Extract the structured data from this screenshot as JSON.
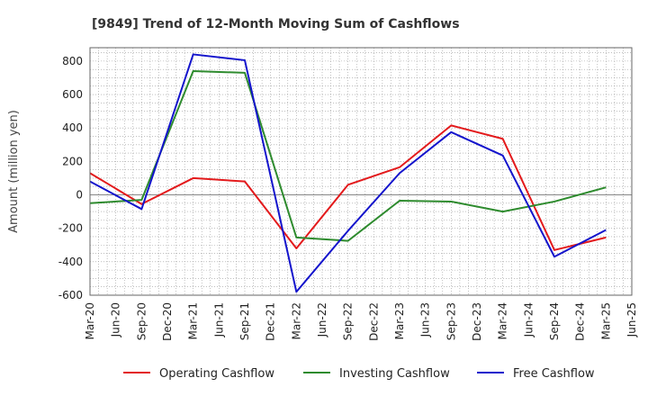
{
  "chart_data": {
    "type": "line",
    "title": "[9849]  Trend of 12-Month Moving Sum of Cashflows",
    "xlabel": "",
    "ylabel": "Amount (million yen)",
    "ylim": [
      -600,
      880
    ],
    "yticks": [
      -600,
      -400,
      -200,
      0,
      200,
      400,
      600,
      800
    ],
    "x": [
      "Mar-20",
      "Jun-20",
      "Sep-20",
      "Dec-20",
      "Mar-21",
      "Jun-21",
      "Sep-21",
      "Dec-21",
      "Mar-22",
      "Jun-22",
      "Sep-22",
      "Dec-22",
      "Mar-23",
      "Jun-23",
      "Sep-23",
      "Dec-23",
      "Mar-24",
      "Jun-24",
      "Sep-24",
      "Dec-24",
      "Mar-25",
      "Jun-25"
    ],
    "grid": true,
    "legend_position": "bottom",
    "series": [
      {
        "name": "Operating Cashflow",
        "color": "#e31a1c",
        "values": [
          130,
          null,
          -55,
          null,
          100,
          null,
          80,
          null,
          -320,
          null,
          60,
          null,
          165,
          null,
          415,
          null,
          335,
          null,
          -330,
          null,
          -255,
          null
        ]
      },
      {
        "name": "Investing Cashflow",
        "color": "#2e8b2e",
        "values": [
          -50,
          null,
          -30,
          null,
          740,
          null,
          730,
          null,
          -255,
          null,
          -275,
          null,
          -35,
          null,
          -40,
          null,
          -100,
          null,
          -40,
          null,
          45,
          null
        ]
      },
      {
        "name": "Free Cashflow",
        "color": "#1414cc",
        "values": [
          80,
          null,
          -85,
          null,
          840,
          null,
          805,
          null,
          -580,
          null,
          -215,
          null,
          130,
          null,
          375,
          null,
          235,
          null,
          -370,
          null,
          -210,
          null
        ]
      }
    ]
  }
}
